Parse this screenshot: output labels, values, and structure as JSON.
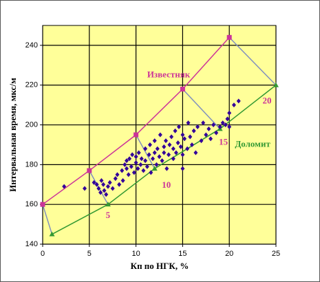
{
  "chart_data": {
    "type": "scatter",
    "x_label": "Кп по НГК, %",
    "y_label": "Интервальная время, мкс/м",
    "xlim": [
      0,
      25
    ],
    "xticks": [
      0,
      5,
      10,
      15,
      20,
      25
    ],
    "ylim": [
      140,
      250
    ],
    "yticks": [
      140,
      160,
      180,
      200,
      220,
      240
    ],
    "grid": true,
    "background": "#ffff99",
    "points": {
      "color": "#330099",
      "x": [
        2.3,
        4.5,
        5.5,
        5.8,
        6,
        6.2,
        6.3,
        6.5,
        6.6,
        6.8,
        7,
        7.2,
        7.5,
        7.8,
        8,
        8.2,
        8.5,
        8.6,
        8.8,
        9,
        9,
        9.2,
        9.3,
        9.5,
        9.6,
        9.8,
        10,
        10,
        10.2,
        10.3,
        10.5,
        10.6,
        10.8,
        11,
        11,
        11.2,
        11.4,
        11.5,
        11.6,
        11.8,
        12,
        12,
        12.2,
        12.3,
        12.5,
        12.6,
        12.8,
        13,
        13,
        13.2,
        13.3,
        13.5,
        13.6,
        13.8,
        14,
        14,
        14.2,
        14.3,
        14.5,
        14.6,
        14.8,
        15,
        15,
        15,
        15.2,
        15.5,
        15.6,
        15.8,
        16,
        16.2,
        16.4,
        16.6,
        17,
        17.2,
        17.5,
        17.8,
        18,
        18.3,
        18.6,
        19,
        19.3,
        19.6,
        19.8,
        20,
        20,
        20.5,
        21
      ],
      "y": [
        169,
        168,
        171,
        170,
        168,
        166,
        172,
        170,
        167,
        165,
        169,
        171,
        168,
        173,
        175,
        170,
        177,
        172,
        180,
        178,
        182,
        175,
        183,
        179,
        185,
        176,
        181,
        184,
        178,
        186,
        180,
        183,
        177,
        188,
        182,
        179,
        185,
        190,
        176,
        183,
        186,
        192,
        180,
        188,
        184,
        195,
        182,
        189,
        186,
        192,
        178,
        185,
        190,
        194,
        183,
        188,
        197,
        186,
        191,
        199,
        189,
        178,
        185,
        195,
        193,
        188,
        201,
        194,
        190,
        197,
        186,
        199,
        192,
        201,
        195,
        198,
        193,
        200,
        196,
        199,
        201,
        200,
        203,
        206,
        199,
        210,
        212
      ]
    },
    "lines": [
      {
        "name": "Известняк",
        "color": "#cc3399",
        "marker": "square",
        "x": [
          0,
          5,
          10,
          15,
          20
        ],
        "y": [
          160,
          177,
          195,
          218,
          244
        ]
      },
      {
        "name": "Доломит",
        "color": "#339933",
        "marker": "triangle",
        "x": [
          1,
          7,
          12,
          19,
          25
        ],
        "y": [
          145,
          160,
          178,
          198,
          220
        ]
      }
    ],
    "iso_color": "#7f8fbf",
    "iso_labels": [
      null,
      "5",
      "10",
      "15",
      "20"
    ]
  }
}
